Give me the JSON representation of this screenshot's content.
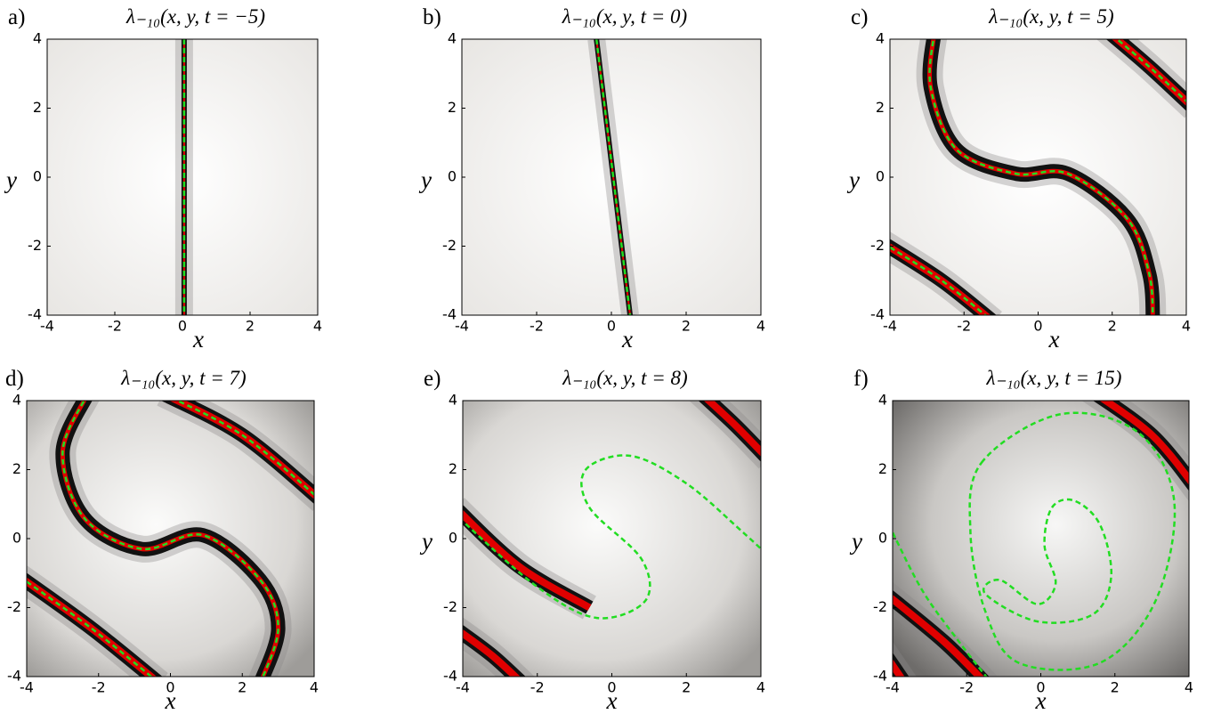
{
  "chart_data": [
    {
      "type": "heatmap",
      "panel_label": "a)",
      "title": "λ₋₁₀(x, y, t = −5)",
      "x_label": "x",
      "y_label": "y",
      "xlim": [
        -4,
        4
      ],
      "ylim": [
        -4,
        4
      ],
      "xticks": [
        -4,
        -2,
        0,
        2,
        4
      ],
      "yticks": [
        -4,
        -2,
        0,
        2,
        4
      ]
    },
    {
      "type": "heatmap",
      "panel_label": "b)",
      "title": "λ₋₁₀(x, y, t = 0)",
      "x_label": "x",
      "y_label": "y",
      "xlim": [
        -4,
        4
      ],
      "ylim": [
        -4,
        4
      ],
      "xticks": [
        -4,
        -2,
        0,
        2,
        4
      ],
      "yticks": [
        -4,
        -2,
        0,
        2,
        4
      ]
    },
    {
      "type": "heatmap",
      "panel_label": "c)",
      "title": "λ₋₁₀(x, y, t = 5)",
      "x_label": "x",
      "y_label": "y",
      "xlim": [
        -4,
        4
      ],
      "ylim": [
        -4,
        4
      ],
      "xticks": [
        -4,
        -2,
        0,
        2,
        4
      ],
      "yticks": [
        -4,
        -2,
        0,
        2,
        4
      ]
    },
    {
      "type": "heatmap",
      "panel_label": "d)",
      "title": "λ₋₁₀(x, y, t = 7)",
      "x_label": "x",
      "y_label": "y",
      "xlim": [
        -4,
        4
      ],
      "ylim": [
        -4,
        4
      ],
      "xticks": [
        -4,
        -2,
        0,
        2,
        4
      ],
      "yticks": [
        -4,
        -2,
        0,
        2,
        4
      ]
    },
    {
      "type": "heatmap",
      "panel_label": "e)",
      "title": "λ₋₁₀(x, y, t = 8)",
      "x_label": "x",
      "y_label": "y",
      "xlim": [
        -4,
        4
      ],
      "ylim": [
        -4,
        4
      ],
      "xticks": [
        -4,
        -2,
        0,
        2,
        4
      ],
      "yticks": [
        -4,
        -2,
        0,
        2,
        4
      ]
    },
    {
      "type": "heatmap",
      "panel_label": "f)",
      "title": "λ₋₁₀(x, y, t = 15)",
      "x_label": "x",
      "y_label": "y",
      "xlim": [
        -4,
        4
      ],
      "ylim": [
        -4,
        4
      ],
      "xticks": [
        -4,
        -2,
        0,
        2,
        4
      ],
      "yticks": [
        -4,
        -2,
        0,
        2,
        4
      ]
    }
  ]
}
